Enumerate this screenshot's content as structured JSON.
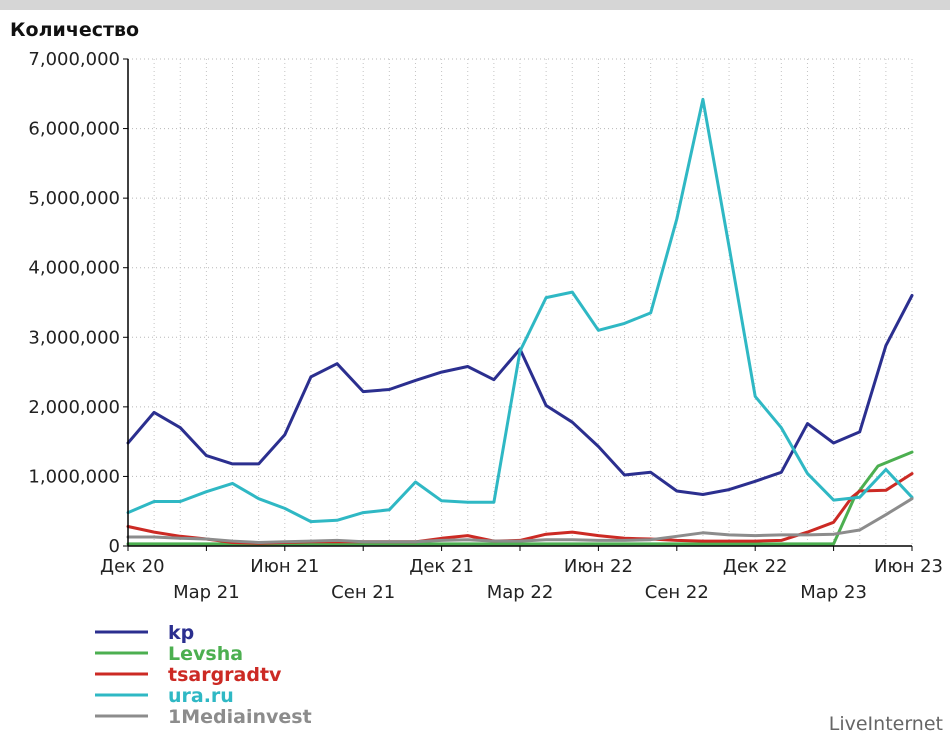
{
  "chart_data": {
    "type": "line",
    "ylabel": "Количество",
    "ylim": [
      0,
      7000000
    ],
    "yticks": [
      {
        "value": 0,
        "label": "0"
      },
      {
        "value": 1000000,
        "label": "1,000,000"
      },
      {
        "value": 2000000,
        "label": "2,000,000"
      },
      {
        "value": 3000000,
        "label": "3,000,000"
      },
      {
        "value": 4000000,
        "label": "4,000,000"
      },
      {
        "value": 5000000,
        "label": "5,000,000"
      },
      {
        "value": 6000000,
        "label": "6,000,000"
      },
      {
        "value": 7000000,
        "label": "7,000,000"
      }
    ],
    "x": [
      "Дек 20",
      "Янв 21",
      "Фев 21",
      "Мар 21",
      "Апр 21",
      "Май 21",
      "Июн 21",
      "Июл 21",
      "Авг 21",
      "Сен 21",
      "Окт 21",
      "Ноя 21",
      "Дек 21",
      "Янв 22",
      "Фев 22",
      "Мар 22",
      "Апр 22",
      "Май 22",
      "Июн 22",
      "Июл 22",
      "Авг 22",
      "Сен 22",
      "Окт 22",
      "Ноя 22",
      "Дек 22",
      "Янв 23",
      "Фев 23",
      "Мар 23",
      "Апр 23",
      "Май 23",
      "Июн 23"
    ],
    "xticks": [
      {
        "value": "Дек 20",
        "label": "Дек 20",
        "row": 1
      },
      {
        "value": "Мар 21",
        "label": "Мар 21",
        "row": 2
      },
      {
        "value": "Июн 21",
        "label": "Июн 21",
        "row": 1
      },
      {
        "value": "Сен 21",
        "label": "Сен 21",
        "row": 2
      },
      {
        "value": "Дек 21",
        "label": "Дек 21",
        "row": 1
      },
      {
        "value": "Мар 22",
        "label": "Мар 22",
        "row": 2
      },
      {
        "value": "Июн 22",
        "label": "Июн 22",
        "row": 1
      },
      {
        "value": "Сен 22",
        "label": "Сен 22",
        "row": 2
      },
      {
        "value": "Дек 22",
        "label": "Дек 22",
        "row": 1
      },
      {
        "value": "Мар 23",
        "label": "Мар 23",
        "row": 2
      },
      {
        "value": "Июн 23",
        "label": "Июн 23",
        "row": 1
      }
    ],
    "grid": true,
    "legend_position": "bottom-left",
    "series": [
      {
        "name": "kp",
        "color": "#2b2f8f",
        "points": [
          [
            0,
            1480000
          ],
          [
            1,
            1920000
          ],
          [
            2,
            1700000
          ],
          [
            3,
            1300000
          ],
          [
            4,
            1180000
          ],
          [
            5,
            1180000
          ],
          [
            6,
            1600000
          ],
          [
            7,
            2430000
          ],
          [
            8,
            2620000
          ],
          [
            9,
            2220000
          ],
          [
            10,
            2250000
          ],
          [
            11,
            2380000
          ],
          [
            12,
            2500000
          ],
          [
            13,
            2580000
          ],
          [
            14,
            2390000
          ],
          [
            15,
            2830000
          ],
          [
            16,
            2020000
          ],
          [
            17,
            1780000
          ],
          [
            18,
            1430000
          ],
          [
            19,
            1020000
          ],
          [
            20,
            1060000
          ],
          [
            21,
            790000
          ],
          [
            22,
            740000
          ],
          [
            23,
            810000
          ],
          [
            24,
            930000
          ],
          [
            25,
            1060000
          ],
          [
            26,
            1760000
          ],
          [
            27,
            1480000
          ],
          [
            28,
            1640000
          ],
          [
            29,
            2880000
          ],
          [
            30,
            3600000
          ]
        ]
      },
      {
        "name": "Levsha",
        "color": "#4caf50",
        "points": [
          [
            0,
            30000
          ],
          [
            1,
            30000
          ],
          [
            2,
            30000
          ],
          [
            3,
            30000
          ],
          [
            4,
            30000
          ],
          [
            5,
            30000
          ],
          [
            6,
            30000
          ],
          [
            7,
            30000
          ],
          [
            8,
            30000
          ],
          [
            9,
            30000
          ],
          [
            10,
            30000
          ],
          [
            11,
            30000
          ],
          [
            12,
            30000
          ],
          [
            13,
            30000
          ],
          [
            14,
            30000
          ],
          [
            15,
            30000
          ],
          [
            16,
            30000
          ],
          [
            17,
            30000
          ],
          [
            18,
            30000
          ],
          [
            19,
            30000
          ],
          [
            20,
            30000
          ],
          [
            21,
            30000
          ],
          [
            22,
            30000
          ],
          [
            23,
            30000
          ],
          [
            24,
            30000
          ],
          [
            25,
            30000
          ],
          [
            26,
            30000
          ],
          [
            27,
            30000
          ],
          [
            27.8,
            700000
          ],
          [
            28.7,
            1150000
          ],
          [
            30,
            1350000
          ]
        ]
      },
      {
        "name": "tsargradtv",
        "color": "#cc2a24",
        "points": [
          [
            0,
            280000
          ],
          [
            1,
            200000
          ],
          [
            2,
            140000
          ],
          [
            3,
            100000
          ],
          [
            4,
            50000
          ],
          [
            5,
            40000
          ],
          [
            6,
            50000
          ],
          [
            7,
            60000
          ],
          [
            8,
            60000
          ],
          [
            9,
            60000
          ],
          [
            10,
            60000
          ],
          [
            11,
            60000
          ],
          [
            12,
            110000
          ],
          [
            13,
            150000
          ],
          [
            14,
            70000
          ],
          [
            15,
            80000
          ],
          [
            16,
            170000
          ],
          [
            17,
            200000
          ],
          [
            18,
            150000
          ],
          [
            19,
            110000
          ],
          [
            20,
            100000
          ],
          [
            21,
            80000
          ],
          [
            22,
            70000
          ],
          [
            23,
            70000
          ],
          [
            24,
            70000
          ],
          [
            25,
            80000
          ],
          [
            26,
            200000
          ],
          [
            27,
            340000
          ],
          [
            27.7,
            700000
          ],
          [
            28,
            790000
          ],
          [
            29,
            800000
          ],
          [
            30,
            1040000
          ]
        ]
      },
      {
        "name": "ura.ru",
        "color": "#2fb8c4",
        "points": [
          [
            0,
            480000
          ],
          [
            1,
            640000
          ],
          [
            2,
            640000
          ],
          [
            3,
            780000
          ],
          [
            4,
            900000
          ],
          [
            5,
            680000
          ],
          [
            6,
            540000
          ],
          [
            7,
            350000
          ],
          [
            8,
            370000
          ],
          [
            9,
            480000
          ],
          [
            10,
            520000
          ],
          [
            11,
            920000
          ],
          [
            12,
            650000
          ],
          [
            13,
            630000
          ],
          [
            14,
            630000
          ],
          [
            15,
            2800000
          ],
          [
            16,
            3570000
          ],
          [
            17,
            3650000
          ],
          [
            18,
            3100000
          ],
          [
            19,
            3200000
          ],
          [
            20,
            3350000
          ],
          [
            21,
            4700000
          ],
          [
            22,
            6420000
          ],
          [
            23,
            4300000
          ],
          [
            24,
            2150000
          ],
          [
            25,
            1700000
          ],
          [
            26,
            1040000
          ],
          [
            27,
            660000
          ],
          [
            28,
            700000
          ],
          [
            29,
            1100000
          ],
          [
            30,
            700000
          ]
        ]
      },
      {
        "name": "1Mediainvest",
        "color": "#8c8c8c",
        "points": [
          [
            0,
            130000
          ],
          [
            1,
            130000
          ],
          [
            2,
            110000
          ],
          [
            3,
            100000
          ],
          [
            4,
            70000
          ],
          [
            5,
            50000
          ],
          [
            6,
            60000
          ],
          [
            7,
            70000
          ],
          [
            8,
            80000
          ],
          [
            9,
            60000
          ],
          [
            10,
            60000
          ],
          [
            11,
            60000
          ],
          [
            12,
            80000
          ],
          [
            13,
            90000
          ],
          [
            14,
            70000
          ],
          [
            15,
            70000
          ],
          [
            16,
            90000
          ],
          [
            17,
            90000
          ],
          [
            18,
            80000
          ],
          [
            19,
            80000
          ],
          [
            20,
            90000
          ],
          [
            21,
            140000
          ],
          [
            22,
            190000
          ],
          [
            23,
            160000
          ],
          [
            24,
            150000
          ],
          [
            25,
            160000
          ],
          [
            26,
            160000
          ],
          [
            27,
            170000
          ],
          [
            28,
            230000
          ],
          [
            29,
            450000
          ],
          [
            30,
            680000
          ]
        ]
      }
    ]
  },
  "legend": [
    {
      "name": "kp",
      "color": "#2b2f8f"
    },
    {
      "name": "Levsha",
      "color": "#4caf50"
    },
    {
      "name": "tsargradtv",
      "color": "#cc2a24"
    },
    {
      "name": "ura.ru",
      "color": "#2fb8c4"
    },
    {
      "name": "1Mediainvest",
      "color": "#8c8c8c"
    }
  ],
  "credit": "LiveInternet"
}
